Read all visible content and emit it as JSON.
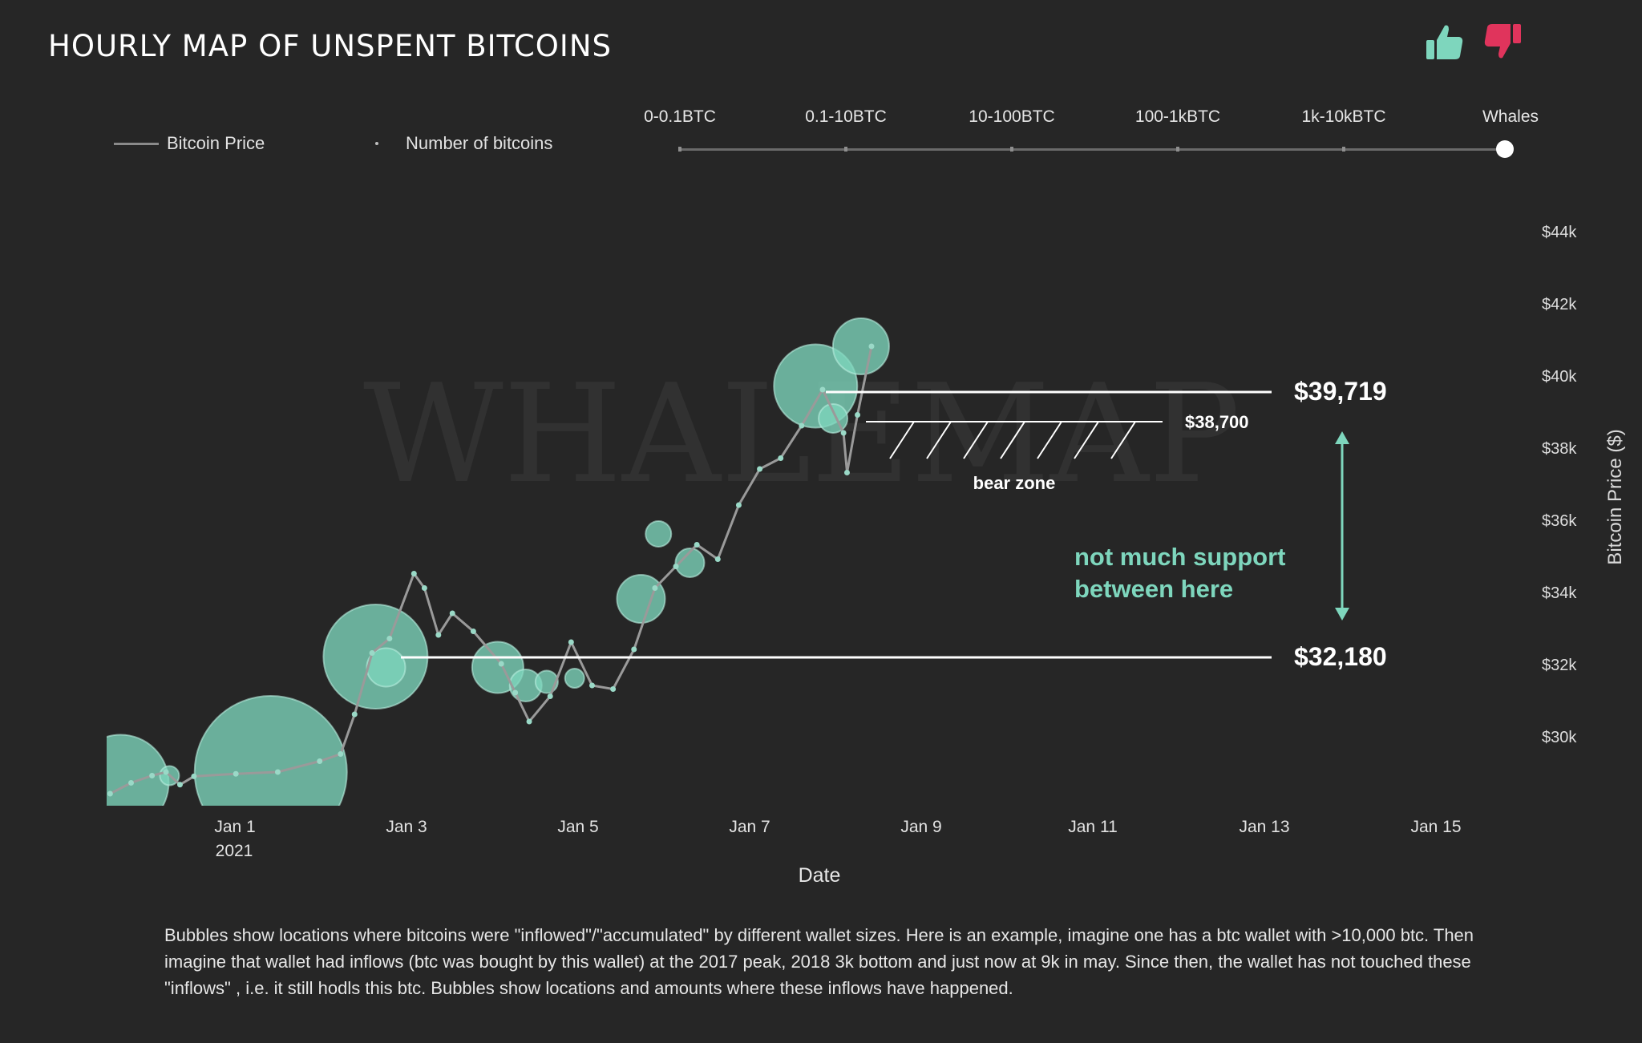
{
  "title": "HOURLY MAP OF UNSPENT BITCOINS",
  "feedback": {
    "up_icon": "thumbs-up-icon",
    "down_icon": "thumbs-down-icon",
    "up_color": "#7ed6bd",
    "down_color": "#e0345c"
  },
  "legend": {
    "price_label": "Bitcoin Price",
    "bubbles_label": "Number of bitcoins"
  },
  "wallet_slider": {
    "options": [
      "0-0.1BTC",
      "0.1-10BTC",
      "10-100BTC",
      "100-1kBTC",
      "1k-10kBTC",
      "Whales"
    ],
    "selected": "Whales"
  },
  "watermark": "WHALEMAP",
  "colors": {
    "background": "#262626",
    "bubble": "#7ed6bd",
    "price_line": "#9a9a9a",
    "support_text": "#7ed6bd"
  },
  "annotations": {
    "level_high": "$39,719",
    "level_mid": "$38,700",
    "level_low": "$32,180",
    "bear_zone": "bear zone",
    "support_line1": "not much support",
    "support_line2": "between here"
  },
  "caption": "Bubbles show locations where bitcoins were \"inflowed\"/\"accumulated\" by different wallet sizes. Here is an example, imagine one has a btc wallet with >10,000 btc. Then imagine that wallet had inflows (btc was bought by this wallet) at the 2017 peak, 2018 3k bottom and just now at 9k in may. Since then, the wallet has not touched these \"inflows\" , i.e. it still hodls this btc. Bubbles show locations and amounts where these inflows have happened.",
  "chart_data": {
    "type": "scatter",
    "xlabel": "Date",
    "ylabel": "Bitcoin Price ($)",
    "x_ticks": [
      "Jan 1",
      "Jan 3",
      "Jan 5",
      "Jan 7",
      "Jan 9",
      "Jan 11",
      "Jan 13",
      "Jan 15"
    ],
    "x_tick_year": "2021",
    "y_ticks": [
      "$30k",
      "$32k",
      "$34k",
      "$36k",
      "$38k",
      "$40k",
      "$42k",
      "$44k"
    ],
    "ylim": [
      28000,
      45000
    ],
    "xlim": [
      "2020-12-30T11:00",
      "2021-01-15T09:00"
    ],
    "series": [
      {
        "name": "Bitcoin Price",
        "kind": "line",
        "points": [
          [
            "2020-12-30T12:00",
            28400
          ],
          [
            "2020-12-30T18:00",
            28700
          ],
          [
            "2020-12-31T00:00",
            28900
          ],
          [
            "2020-12-31T04:00",
            29000
          ],
          [
            "2020-12-31T08:00",
            28650
          ],
          [
            "2020-12-31T12:00",
            28880
          ],
          [
            "2021-01-01T00:00",
            28950
          ],
          [
            "2021-01-01T12:00",
            29000
          ],
          [
            "2021-01-02T00:00",
            29300
          ],
          [
            "2021-01-02T06:00",
            29500
          ],
          [
            "2021-01-02T10:00",
            30600
          ],
          [
            "2021-01-02T15:00",
            32300
          ],
          [
            "2021-01-02T20:00",
            32700
          ],
          [
            "2021-01-03T03:00",
            34500
          ],
          [
            "2021-01-03T06:00",
            34100
          ],
          [
            "2021-01-03T10:00",
            32800
          ],
          [
            "2021-01-03T14:00",
            33400
          ],
          [
            "2021-01-03T20:00",
            32900
          ],
          [
            "2021-01-04T04:00",
            32000
          ],
          [
            "2021-01-04T08:00",
            31200
          ],
          [
            "2021-01-04T12:00",
            30400
          ],
          [
            "2021-01-04T18:00",
            31100
          ],
          [
            "2021-01-05T00:00",
            32600
          ],
          [
            "2021-01-05T06:00",
            31400
          ],
          [
            "2021-01-05T12:00",
            31300
          ],
          [
            "2021-01-05T18:00",
            32400
          ],
          [
            "2021-01-06T00:00",
            34100
          ],
          [
            "2021-01-06T06:00",
            34700
          ],
          [
            "2021-01-06T12:00",
            35300
          ],
          [
            "2021-01-06T18:00",
            34900
          ],
          [
            "2021-01-07T00:00",
            36400
          ],
          [
            "2021-01-07T06:00",
            37400
          ],
          [
            "2021-01-07T12:00",
            37700
          ],
          [
            "2021-01-07T18:00",
            38600
          ],
          [
            "2021-01-08T00:00",
            39600
          ],
          [
            "2021-01-08T06:00",
            38400
          ],
          [
            "2021-01-08T07:00",
            37300
          ],
          [
            "2021-01-08T10:00",
            38900
          ],
          [
            "2021-01-08T14:00",
            40800
          ]
        ]
      },
      {
        "name": "Number of bitcoins",
        "kind": "bubbles",
        "points": [
          [
            "2020-12-30T15:00",
            28700,
            60
          ],
          [
            "2020-12-31T05:00",
            28900,
            12
          ],
          [
            "2021-01-01T10:00",
            29000,
            95
          ],
          [
            "2021-01-02T16:00",
            32200,
            65
          ],
          [
            "2021-01-02T19:00",
            31900,
            24
          ],
          [
            "2021-01-04T03:00",
            31900,
            32
          ],
          [
            "2021-01-04T11:00",
            31400,
            20
          ],
          [
            "2021-01-04T17:00",
            31500,
            14
          ],
          [
            "2021-01-05T01:00",
            31600,
            12
          ],
          [
            "2021-01-05T20:00",
            33800,
            30
          ],
          [
            "2021-01-06T01:00",
            35600,
            16
          ],
          [
            "2021-01-06T10:00",
            34800,
            18
          ],
          [
            "2021-01-07T22:00",
            39700,
            52
          ],
          [
            "2021-01-08T03:00",
            38800,
            18
          ],
          [
            "2021-01-08T11:00",
            40800,
            35
          ]
        ]
      }
    ]
  }
}
